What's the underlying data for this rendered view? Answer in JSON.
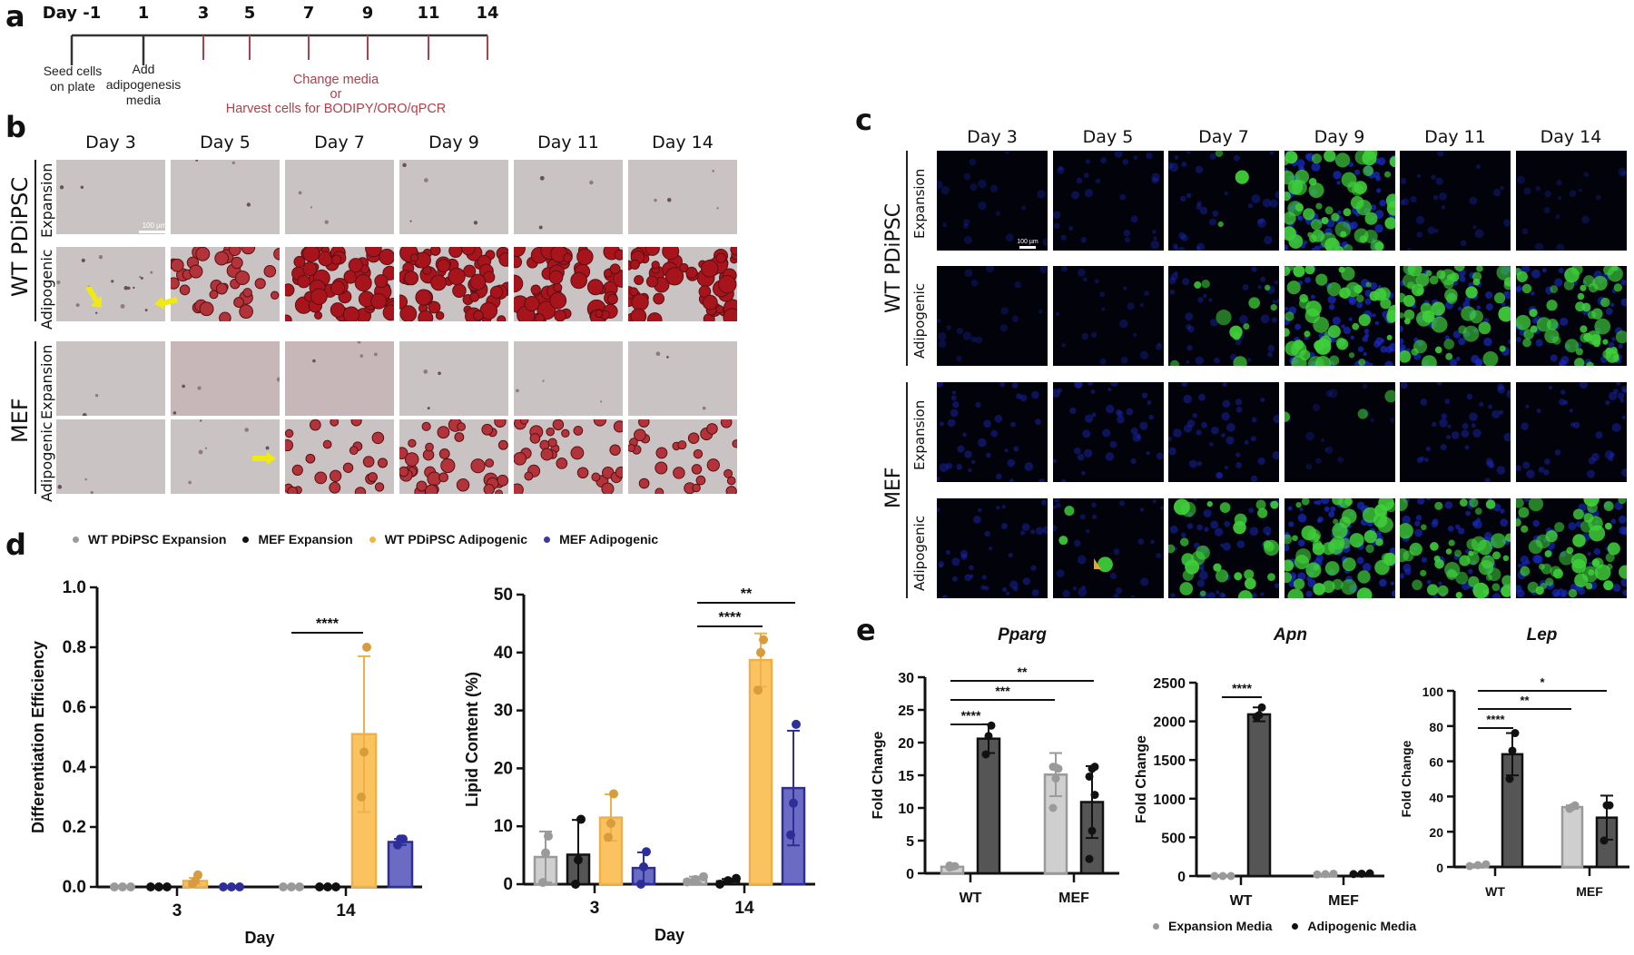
{
  "panel_a": {
    "letter": "a",
    "days": [
      "Day -1",
      "1",
      "3",
      "5",
      "7",
      "9",
      "11",
      "14"
    ],
    "events": {
      "seed": [
        "Seed cells",
        "on plate"
      ],
      "add": [
        "Add",
        "adipogenesis",
        "media"
      ],
      "change": [
        "Change media",
        "or",
        "Harvest cells for BODIPY/ORO/qPCR"
      ]
    },
    "colors": {
      "dark": "#333333",
      "red": "#b0404a"
    }
  },
  "panel_b": {
    "letter": "b",
    "columns": [
      "Day 3",
      "Day 5",
      "Day 7",
      "Day 9",
      "Day 11",
      "Day 14"
    ],
    "groups": [
      "WT PDiPSC",
      "MEF"
    ],
    "rows": [
      "Expansion",
      "Adipogenic",
      "Expansion",
      "Adipogenic"
    ],
    "scale_bar": "100 µm",
    "stain": "ORO"
  },
  "panel_c": {
    "letter": "c",
    "columns": [
      "Day 3",
      "Day 5",
      "Day 7",
      "Day 9",
      "Day 11",
      "Day 14"
    ],
    "groups": [
      "WT PDiPSC",
      "MEF"
    ],
    "rows": [
      "Expansion",
      "Adipogenic",
      "Expansion",
      "Adipogenic"
    ],
    "scale_bar": "100 µm",
    "stain": "BODIPY"
  },
  "panel_d": {
    "letter": "d",
    "legend": [
      {
        "label": "WT PDiPSC Expansion",
        "color": "#9a9a9a"
      },
      {
        "label": "MEF Expansion",
        "color": "#111111"
      },
      {
        "label": "WT PDiPSC Adipogenic",
        "color": "#f2b544"
      },
      {
        "label": "MEF Adipogenic",
        "color": "#3a3aa0"
      }
    ]
  },
  "panel_e": {
    "letter": "e",
    "legend": [
      {
        "label": "Expansion Media",
        "color": "#9a9a9a"
      },
      {
        "label": "Adipogenic Media",
        "color": "#111111"
      }
    ]
  },
  "chart_data": [
    {
      "id": "d-diff-eff",
      "type": "bar",
      "title": "",
      "xlabel": "Day",
      "ylabel": "Differentiation Efficiency",
      "categories": [
        "3",
        "14"
      ],
      "ylim": [
        0,
        1.0
      ],
      "yticks": [
        "0.0",
        "0.2",
        "0.4",
        "0.6",
        "0.8",
        "1.0"
      ],
      "series": [
        {
          "name": "WT PDiPSC Expansion",
          "values": [
            0.0,
            0.0
          ],
          "err": [
            0,
            0
          ],
          "points": [
            [
              0,
              0,
              0
            ],
            [
              0,
              0,
              0
            ]
          ]
        },
        {
          "name": "MEF Expansion",
          "values": [
            0.0,
            0.0
          ],
          "err": [
            0,
            0
          ],
          "points": [
            [
              0,
              0,
              0
            ],
            [
              0,
              0,
              0
            ]
          ]
        },
        {
          "name": "WT PDiPSC Adipogenic",
          "values": [
            0.02,
            0.51
          ],
          "err": [
            0.01,
            0.26
          ],
          "points": [
            [
              0.01,
              0.02,
              0.04
            ],
            [
              0.3,
              0.45,
              0.8
            ]
          ]
        },
        {
          "name": "MEF Adipogenic",
          "values": [
            0.0,
            0.15
          ],
          "err": [
            0,
            0.01
          ],
          "points": [
            [
              0,
              0,
              0
            ],
            [
              0.14,
              0.16,
              0.16
            ]
          ]
        }
      ],
      "significance": [
        {
          "label": "****",
          "from_series": 0,
          "to_series": 2,
          "category": "14"
        }
      ]
    },
    {
      "id": "d-lipid",
      "type": "bar",
      "title": "",
      "xlabel": "Day",
      "ylabel": "Lipid Content (%)",
      "categories": [
        "3",
        "14"
      ],
      "ylim": [
        0,
        50
      ],
      "yticks": [
        "0",
        "10",
        "20",
        "30",
        "40",
        "50"
      ],
      "series": [
        {
          "name": "WT PDiPSC Expansion",
          "values": [
            4.7,
            0.8
          ],
          "err": [
            4.4,
            0.5
          ],
          "points": [
            [
              0.3,
              5.4,
              8.3
            ],
            [
              0.4,
              0.8,
              1.3
            ]
          ]
        },
        {
          "name": "MEF Expansion",
          "values": [
            5.1,
            0.5
          ],
          "err": [
            6.0,
            0.4
          ],
          "points": [
            [
              0,
              4.2,
              11.2
            ],
            [
              0,
              0.6,
              1.0
            ]
          ]
        },
        {
          "name": "WT PDiPSC Adipogenic",
          "values": [
            11.5,
            38.7
          ],
          "err": [
            4.0,
            4.6
          ],
          "points": [
            [
              8.1,
              10.5,
              15.6
            ],
            [
              33.5,
              40.0,
              42.2
            ]
          ]
        },
        {
          "name": "MEF Adipogenic",
          "values": [
            2.8,
            16.6
          ],
          "err": [
            2.7,
            9.9
          ],
          "points": [
            [
              0,
              3.0,
              5.6
            ],
            [
              8.5,
              14.0,
              27.6
            ]
          ]
        }
      ],
      "significance": [
        {
          "label": "****",
          "from_series": 0,
          "to_series": 2,
          "category": "14"
        },
        {
          "label": "**",
          "from_series": 0,
          "to_series": 3,
          "category": "14"
        }
      ]
    },
    {
      "id": "e-pparg",
      "type": "bar",
      "title": "Pparg",
      "xlabel": "",
      "ylabel": "Fold Change",
      "categories": [
        "WT",
        "MEF"
      ],
      "ylim": [
        0,
        30
      ],
      "yticks": [
        "0",
        "5",
        "10",
        "15",
        "20",
        "25",
        "30"
      ],
      "series": [
        {
          "name": "Expansion Media",
          "values": [
            1.0,
            15.1
          ],
          "err": [
            0.2,
            3.3
          ],
          "points": [
            [
              0.9,
              1.0,
              1.1,
              1.2,
              1.0
            ],
            [
              10.0,
              14.5,
              16.0,
              16.3,
              16.2
            ]
          ]
        },
        {
          "name": "Adipogenic Media",
          "values": [
            20.6,
            10.9
          ],
          "err": [
            2.2,
            5.5
          ],
          "points": [
            [
              18.2,
              21.0,
              22.6
            ],
            [
              2.2,
              6.5,
              12.0,
              14.8,
              16.0,
              16.3
            ]
          ]
        }
      ],
      "significance": [
        {
          "label": "****",
          "pair": "WT Expansion vs WT Adipogenic"
        },
        {
          "label": "***",
          "pair": "WT Expansion vs MEF Expansion"
        },
        {
          "label": "**",
          "pair": "WT Expansion vs MEF Adipogenic"
        }
      ]
    },
    {
      "id": "e-apn",
      "type": "bar",
      "title": "Apn",
      "xlabel": "",
      "ylabel": "Fold Change",
      "categories": [
        "WT",
        "MEF"
      ],
      "ylim": [
        0,
        2500
      ],
      "yticks": [
        "0",
        "500",
        "1000",
        "1500",
        "2000",
        "2500"
      ],
      "series": [
        {
          "name": "Expansion Media",
          "values": [
            1,
            25
          ],
          "err": [
            0,
            5
          ],
          "points": [
            [
              0,
              0,
              0
            ],
            [
              20,
              25,
              30
            ]
          ]
        },
        {
          "name": "Adipogenic Media",
          "values": [
            2090,
            30
          ],
          "err": [
            90,
            5
          ],
          "points": [
            [
              2060,
              2080,
              2180
            ],
            [
              25,
              30,
              35
            ]
          ]
        }
      ],
      "significance": [
        {
          "label": "****",
          "pair": "WT Expansion vs WT Adipogenic"
        }
      ]
    },
    {
      "id": "e-lep",
      "type": "bar",
      "title": "Lep",
      "xlabel": "",
      "ylabel": "Fold Change",
      "categories": [
        "WT",
        "MEF"
      ],
      "ylim": [
        0,
        100
      ],
      "yticks": [
        "0",
        "20",
        "40",
        "60",
        "80",
        "100"
      ],
      "series": [
        {
          "name": "Expansion Media",
          "values": [
            1.0,
            34
          ],
          "err": [
            0.5,
            1
          ],
          "points": [
            [
              0.5,
              1.0,
              1.5
            ],
            [
              33,
              34,
              35
            ]
          ]
        },
        {
          "name": "Adipogenic Media",
          "values": [
            64,
            28
          ],
          "err": [
            12,
            12.5
          ],
          "points": [
            [
              50,
              66,
              76
            ],
            [
              15,
              35,
              35
            ]
          ]
        }
      ],
      "significance": [
        {
          "label": "****",
          "pair": "WT Expansion vs WT Adipogenic"
        },
        {
          "label": "**",
          "pair": "WT Expansion vs MEF Expansion"
        },
        {
          "label": "*",
          "pair": "WT Expansion vs MEF Adipogenic"
        }
      ]
    }
  ]
}
